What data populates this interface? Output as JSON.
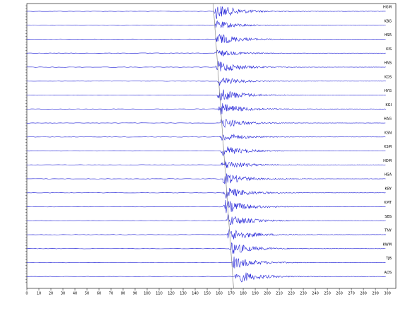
{
  "chart_data": {
    "type": "seismogram",
    "xlim": [
      0,
      307
    ],
    "xticks": [
      0,
      10,
      20,
      30,
      40,
      50,
      60,
      70,
      80,
      90,
      100,
      110,
      120,
      130,
      140,
      150,
      160,
      170,
      180,
      190,
      200,
      210,
      220,
      230,
      240,
      250,
      260,
      270,
      280,
      290,
      300
    ],
    "color": "#1f1fd6",
    "traces": [
      {
        "name": "HGM",
        "onset": 155,
        "amplitude": 1.0
      },
      {
        "name": "KBG",
        "onset": 156,
        "amplitude": 0.6
      },
      {
        "name": "HSR",
        "onset": 156,
        "amplitude": 0.8
      },
      {
        "name": "KIS",
        "onset": 156,
        "amplitude": 0.5
      },
      {
        "name": "HNS",
        "onset": 157,
        "amplitude": 0.8
      },
      {
        "name": "KDS",
        "onset": 158,
        "amplitude": 0.6
      },
      {
        "name": "HYG",
        "onset": 158,
        "amplitude": 0.9
      },
      {
        "name": "KGI",
        "onset": 159,
        "amplitude": 0.8
      },
      {
        "name": "HAG",
        "onset": 160,
        "amplitude": 0.7
      },
      {
        "name": "KSN",
        "onset": 160,
        "amplitude": 0.6
      },
      {
        "name": "KSM",
        "onset": 161,
        "amplitude": 0.7
      },
      {
        "name": "HDM",
        "onset": 161,
        "amplitude": 0.7
      },
      {
        "name": "HSA",
        "onset": 162,
        "amplitude": 0.8
      },
      {
        "name": "KBY",
        "onset": 163,
        "amplitude": 0.8
      },
      {
        "name": "KMT",
        "onset": 163,
        "amplitude": 0.9
      },
      {
        "name": "SBS",
        "onset": 165,
        "amplitude": 0.8
      },
      {
        "name": "TNY",
        "onset": 166,
        "amplitude": 0.9
      },
      {
        "name": "KWM",
        "onset": 168,
        "amplitude": 0.8
      },
      {
        "name": "TJB",
        "onset": 170,
        "amplitude": 0.8
      },
      {
        "name": "ADS",
        "onset": 172,
        "amplitude": 0.9
      }
    ]
  }
}
